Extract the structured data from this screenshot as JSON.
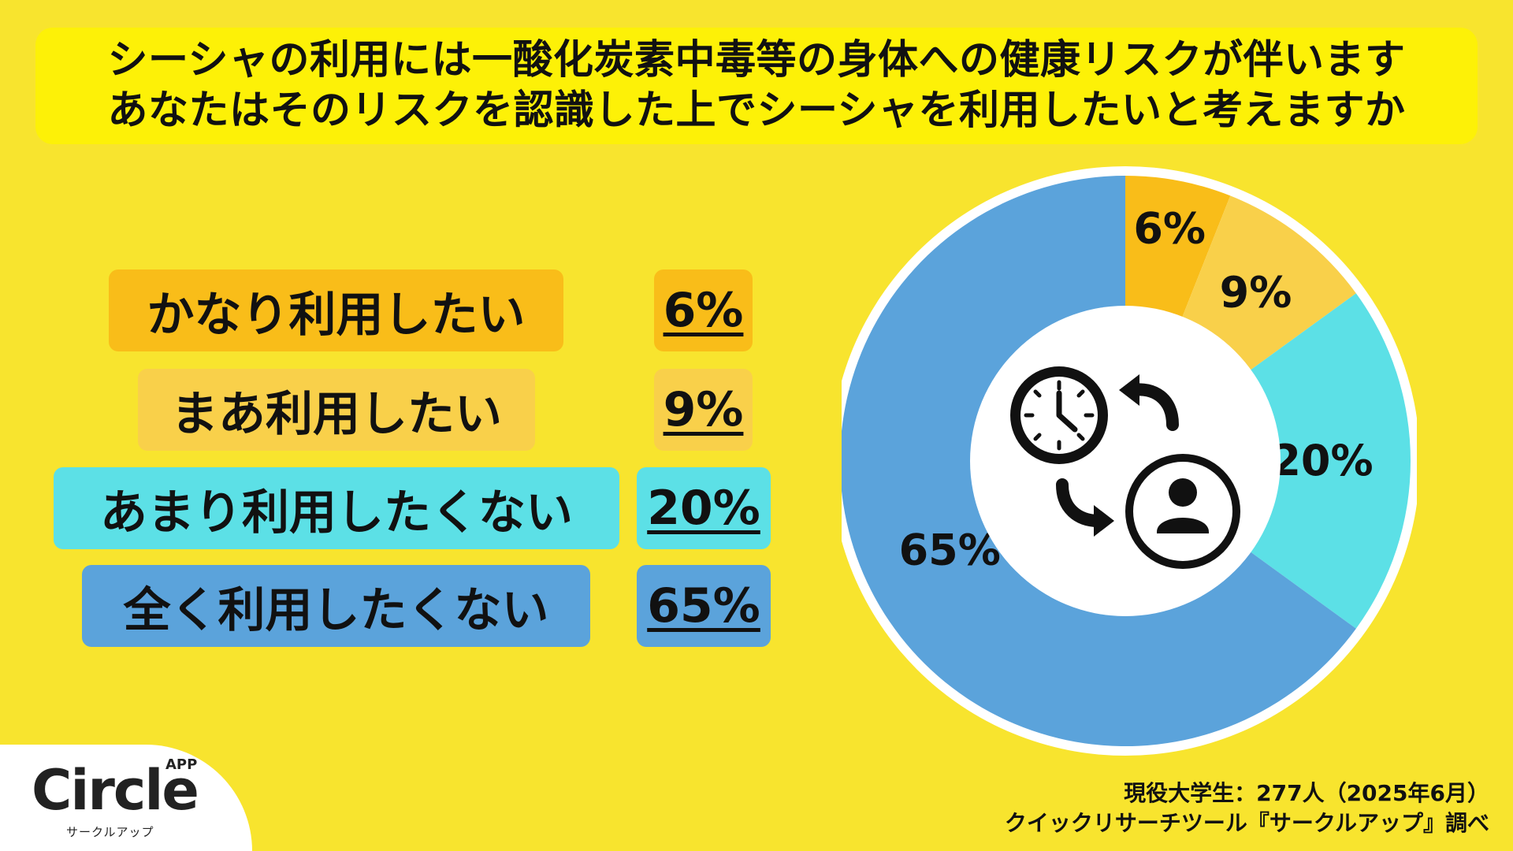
{
  "title": {
    "line1": "シーシャの利用には一酸化炭素中毒等の身体への健康リスクが伴います",
    "line2": "あなたはそのリスクを認識した上でシーシャを利用したいと考えますか"
  },
  "colors": {
    "background": "#F8E42E",
    "title_box": "#FDF107",
    "slice_1": "#F9BD19",
    "slice_2": "#F9D04A",
    "slice_3": "#5CE0E6",
    "slice_4": "#5BA3DB"
  },
  "chart_data": {
    "type": "pie",
    "categories": [
      "かなり利用したい",
      "まあ利用したい",
      "あまり利用したくない",
      "全く利用したくない"
    ],
    "values": [
      6,
      9,
      20,
      65
    ],
    "value_labels": [
      "6%",
      "9%",
      "20%",
      "65%"
    ],
    "colors": [
      "#F9BD19",
      "#F9D04A",
      "#5CE0E6",
      "#5BA3DB"
    ],
    "style": "donut",
    "center_icon": "clock-person-cycle-icon"
  },
  "source": {
    "line1": "現役大学生：277人（2025年6月）",
    "line2": "クイックリサーチツール『サークルアップ』調べ"
  },
  "logo": {
    "brand": "Circle",
    "app": "APP",
    "kana": "サークルアップ"
  }
}
